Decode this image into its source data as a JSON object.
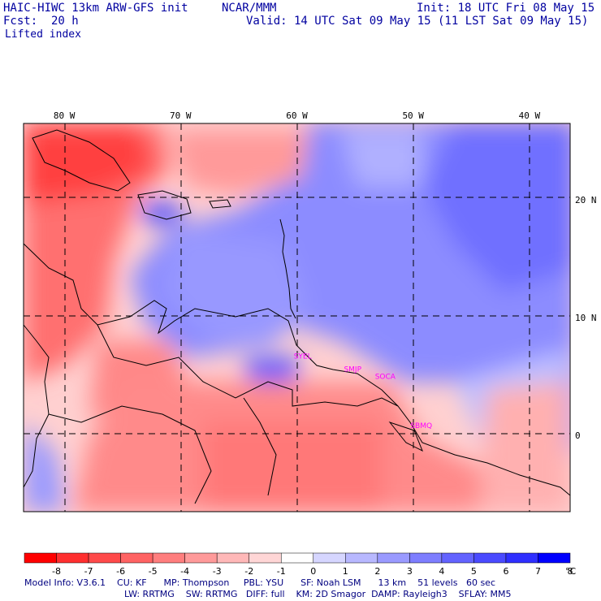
{
  "header": {
    "model_title": "HAIC-HIWC 13km ARW-GFS init",
    "institution": "NCAR/MMM",
    "init": "Init: 18 UTC Fri 08 May 15",
    "fcst": "Fcst:  20 h",
    "valid": "Valid: 14 UTC Sat 09 May 15 (11 LST Sat 09 May 15)",
    "field": "Lifted index"
  },
  "map": {
    "lon_labels": [
      "80 W",
      "70 W",
      "60 W",
      "50 W",
      "40 W"
    ],
    "lon_values": [
      -80,
      -70,
      -60,
      -50,
      -40
    ],
    "lat_labels": [
      "20 N",
      "10 N",
      "0"
    ],
    "lat_values": [
      20,
      10,
      0
    ],
    "lon_range": [
      -83.5,
      -36.5
    ],
    "lat_range": [
      -6.5,
      26.5
    ],
    "stations": [
      {
        "name": "SYEL",
        "lon": -59.5,
        "lat": 6.5
      },
      {
        "name": "SMJP",
        "lon": -55.2,
        "lat": 5.4
      },
      {
        "name": "SOCA",
        "lon": -52.4,
        "lat": 4.8
      },
      {
        "name": "SBMQ",
        "lon": -49.3,
        "lat": 0.6
      }
    ],
    "station_color": "#ff00ff"
  },
  "colorbar": {
    "ticks": [
      "-8",
      "-7",
      "-6",
      "-5",
      "-4",
      "-3",
      "-2",
      "-1",
      "0",
      "1",
      "2",
      "3",
      "4",
      "5",
      "6",
      "7",
      "8"
    ],
    "unit": "°C",
    "colors": [
      "#ff0000",
      "#ff2f2f",
      "#ff4a4a",
      "#ff6363",
      "#ff7e7e",
      "#ff9a9a",
      "#ffb8b8",
      "#ffd6d6",
      "#ffffff",
      "#d6d6ff",
      "#b8b8ff",
      "#9a9aff",
      "#7e7eff",
      "#6363ff",
      "#4a4aff",
      "#2f2fff",
      "#0000ff"
    ]
  },
  "model_info": {
    "line1": "Model Info: V3.6.1    CU: KF      MP: Thompson     PBL: YSU      SF: Noah LSM      13 km    51 levels   60 sec",
    "line2": "LW: RRTMG    SW: RRTMG   DIFF: full    KM: 2D Smagor  DAMP: Rayleigh3    SFLAY: MM5"
  }
}
